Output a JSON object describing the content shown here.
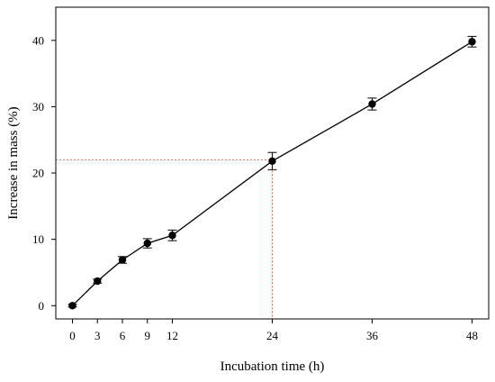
{
  "chart_data": {
    "type": "line",
    "title": "",
    "xlabel": "Incubation time (h)",
    "ylabel": "Increase in mass (%)",
    "xlim": [
      -2,
      50
    ],
    "ylim": [
      -2,
      45
    ],
    "xticks": [
      0,
      3,
      6,
      9,
      12,
      24,
      36,
      48
    ],
    "yticks": [
      0,
      10,
      20,
      30,
      40
    ],
    "grid": false,
    "series": [
      {
        "x": [
          0,
          3,
          6,
          9,
          12,
          24,
          36,
          48
        ],
        "y": [
          0,
          3.7,
          6.9,
          9.4,
          10.6,
          21.8,
          30.4,
          39.8
        ],
        "error": [
          0.2,
          0.3,
          0.5,
          0.7,
          0.8,
          1.3,
          0.9,
          0.8
        ],
        "color": "#000000"
      }
    ],
    "reference_lines": {
      "x": 24,
      "y": 22,
      "color": "#e0705a",
      "style": "dotted"
    }
  }
}
